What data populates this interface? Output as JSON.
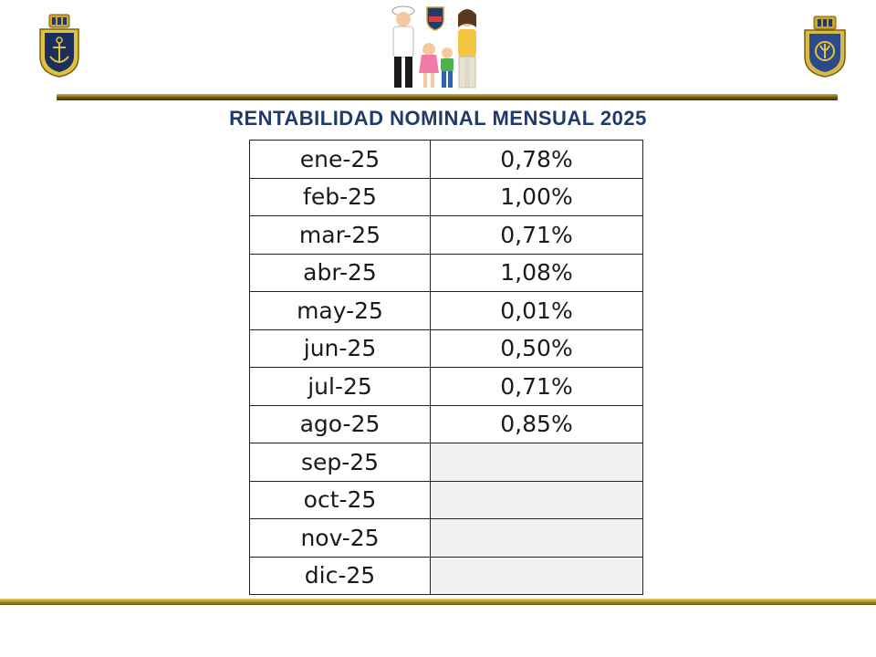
{
  "header": {
    "left_emblem_icon": "navy-anchor-shield-icon",
    "center_illustration_icon": "navy-family-illustration-icon",
    "right_emblem_icon": "navy-crest-shield-icon"
  },
  "title": "RENTABILIDAD NOMINAL MENSUAL 2025",
  "colors": {
    "title": "#1f3a6b",
    "rule_gold": "#b79a2a",
    "empty_cell": "#f0f0f0"
  },
  "table": {
    "rows": [
      {
        "month": "ene-25",
        "value": "0,78%"
      },
      {
        "month": "feb-25",
        "value": "1,00%"
      },
      {
        "month": "mar-25",
        "value": "0,71%"
      },
      {
        "month": "abr-25",
        "value": "1,08%"
      },
      {
        "month": "may-25",
        "value": "0,01%"
      },
      {
        "month": "jun-25",
        "value": "0,50%"
      },
      {
        "month": "jul-25",
        "value": "0,71%"
      },
      {
        "month": "ago-25",
        "value": "0,85%"
      },
      {
        "month": "sep-25",
        "value": ""
      },
      {
        "month": "oct-25",
        "value": ""
      },
      {
        "month": "nov-25",
        "value": ""
      },
      {
        "month": "dic-25",
        "value": ""
      }
    ]
  }
}
